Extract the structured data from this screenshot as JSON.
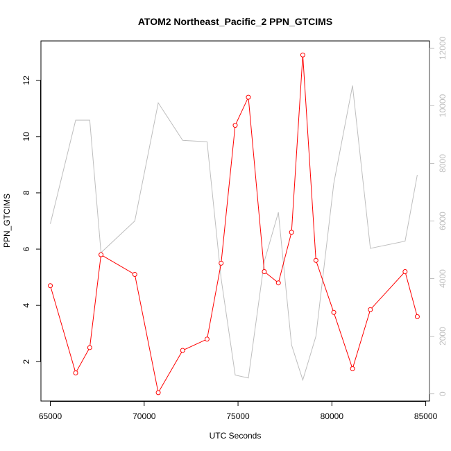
{
  "chart_data": {
    "type": "line",
    "title": "ATOM2 Northeast_Pacific_2 PPN_GTCIMS",
    "xlabel": "UTC Seconds",
    "ylabel": "PPN_GTCIMS",
    "xlim": [
      64500,
      85200
    ],
    "ylim": [
      0.6,
      13.4
    ],
    "y2lim": [
      -250,
      12250
    ],
    "x_ticks": [
      65000,
      70000,
      75000,
      80000,
      85000
    ],
    "y_ticks": [
      2,
      4,
      6,
      8,
      10,
      12
    ],
    "y2_ticks": [
      0,
      2000,
      4000,
      6000,
      8000,
      10000,
      12000
    ],
    "colors": {
      "primary": "#ff0000",
      "secondary": "#bebebe",
      "axis": "#000000",
      "secondary_axis": "#bebebe"
    },
    "series": [
      {
        "axis": "left",
        "style": "line+points",
        "color": "#ff0000",
        "x": [
          65000,
          66350,
          67100,
          67700,
          69500,
          70750,
          72050,
          73350,
          74100,
          74850,
          75550,
          76400,
          77150,
          77850,
          78450,
          79150,
          80100,
          81100,
          82050,
          83900,
          84550
        ],
        "values": [
          4.7,
          1.6,
          2.5,
          5.8,
          5.1,
          0.9,
          2.4,
          2.8,
          5.5,
          10.4,
          11.4,
          5.2,
          4.8,
          6.6,
          12.9,
          5.6,
          3.75,
          1.75,
          3.85,
          5.2,
          3.6
        ]
      },
      {
        "axis": "right",
        "style": "line",
        "color": "#bebebe",
        "x": [
          65000,
          66350,
          67100,
          67700,
          69500,
          70750,
          72050,
          73350,
          74100,
          74850,
          75550,
          76400,
          77150,
          77850,
          78450,
          79150,
          80100,
          81100,
          82050,
          83900,
          84550
        ],
        "values": [
          5900,
          9500,
          9500,
          4900,
          6000,
          10100,
          8800,
          8750,
          4000,
          650,
          550,
          4600,
          6300,
          1700,
          480,
          2000,
          7300,
          10700,
          5050,
          5300,
          7600
        ]
      }
    ]
  }
}
